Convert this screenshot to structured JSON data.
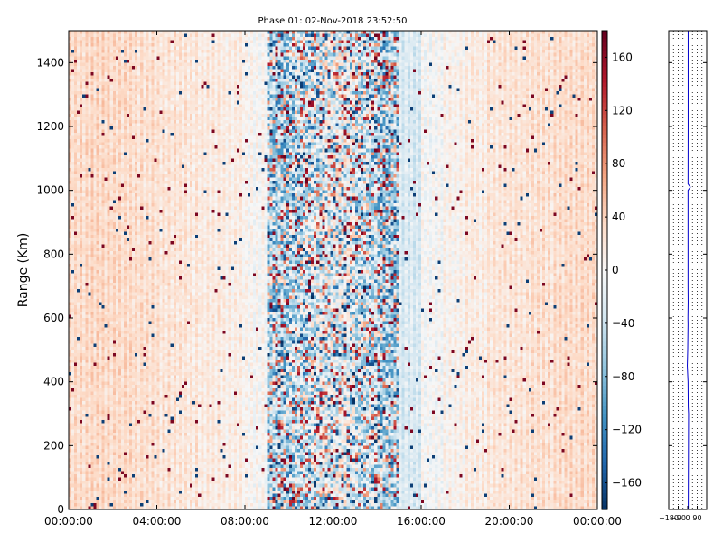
{
  "chart_data": [
    {
      "type": "heatmap",
      "title": "Phase 01: 02-Nov-2018 23:52:50",
      "xlabel": "",
      "ylabel": "Range (Km)",
      "x_tick_labels": [
        "00:00:00",
        "04:00:00",
        "08:00:00",
        "12:00:00",
        "16:00:00",
        "20:00:00",
        "00:00:00"
      ],
      "x_range": [
        "00:00:00",
        "24:00:00"
      ],
      "y_ticks": [
        0,
        200,
        400,
        600,
        800,
        1000,
        1200,
        1400
      ],
      "ylim": [
        0,
        1500
      ],
      "value_range": [
        -180,
        180
      ],
      "colormap": "RdBu_r",
      "colorbar": {
        "ticks": [
          160,
          120,
          80,
          40,
          0,
          -40,
          -80,
          -120,
          -160
        ],
        "tick_labels": [
          "160",
          "120",
          "80",
          "40",
          "0",
          "−40",
          "−80",
          "−120",
          "−160"
        ]
      },
      "pattern": {
        "background_mean_by_hour": [
          30,
          32,
          30,
          26,
          22,
          18,
          14,
          10,
          0,
          -60,
          -40,
          -20,
          -10,
          -40,
          -60,
          -30,
          -5,
          5,
          12,
          20,
          22,
          25,
          28,
          30
        ],
        "high_variance_hours": [
          9,
          10,
          11,
          12,
          13,
          14
        ],
        "colors": {
          "positive": "#67001f",
          "neutral": "#f7f7f7",
          "negative": "#053061"
        }
      }
    },
    {
      "type": "line",
      "title": "",
      "x_tick_labels": [
        "−180",
        "−90",
        "0",
        "90"
      ],
      "xlim": [
        -180,
        180
      ],
      "ylim": [
        0,
        1500
      ],
      "y_ticks": [
        0,
        200,
        400,
        600,
        800,
        1000,
        1200,
        1400
      ],
      "series": [
        {
          "color": "#0000cc",
          "x": [
            5,
            6,
            8,
            5,
            3,
            -4,
            0,
            3,
            2,
            4,
            3,
            3,
            3,
            25,
            3,
            4,
            4,
            4
          ],
          "y": [
            0,
            100,
            300,
            320,
            400,
            450,
            500,
            580,
            600,
            650,
            700,
            800,
            1000,
            1010,
            1020,
            1200,
            1400,
            1500
          ]
        }
      ],
      "grid_x": [
        -135,
        -90,
        -45,
        45,
        90,
        135
      ]
    }
  ]
}
